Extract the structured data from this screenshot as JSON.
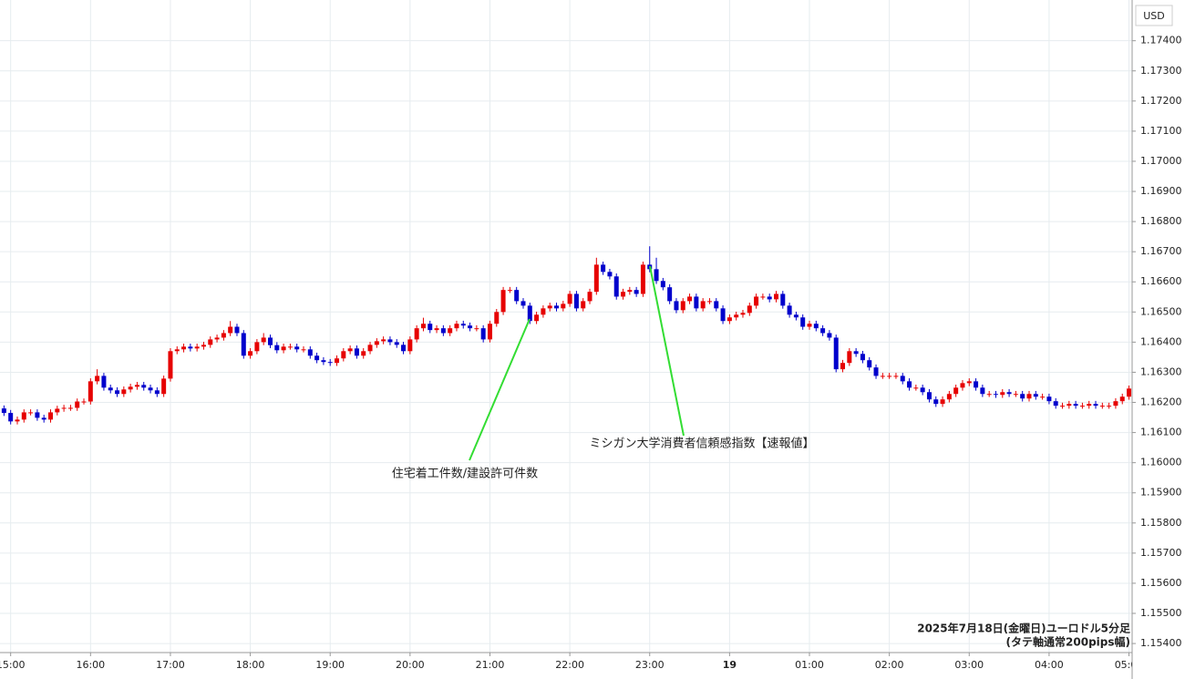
{
  "chart_data": {
    "type": "candlestick",
    "currency": "USD",
    "note": [
      "2025年7月18日(金曜日)ユーロドル5分足",
      "(タテ軸通常200pips幅)"
    ],
    "annotations": [
      "住宅着工件数/建設許可件数",
      "ミシガン大学消費者信頼感指数【速報値】"
    ],
    "up_color": "#e60000",
    "down_color": "#0000cc",
    "grid": true,
    "xlim": [
      -8,
      841
    ],
    "xticks": [
      {
        "value": 0,
        "label": "15:00"
      },
      {
        "value": 60,
        "label": "16:00"
      },
      {
        "value": 120,
        "label": "17:00"
      },
      {
        "value": 180,
        "label": "18:00"
      },
      {
        "value": 240,
        "label": "19:00"
      },
      {
        "value": 300,
        "label": "20:00"
      },
      {
        "value": 360,
        "label": "21:00"
      },
      {
        "value": 420,
        "label": "22:00"
      },
      {
        "value": 480,
        "label": "23:00"
      },
      {
        "value": 540,
        "label": "19"
      },
      {
        "value": 600,
        "label": "01:00"
      },
      {
        "value": 660,
        "label": "02:00"
      },
      {
        "value": 720,
        "label": "03:00"
      },
      {
        "value": 780,
        "label": "04:00"
      },
      {
        "value": 840,
        "label": "05:00"
      }
    ],
    "ylim": [
      1.1537,
      1.1752
    ],
    "yticks": [
      {
        "value": 1.154,
        "label": "1.15400"
      },
      {
        "value": 1.155,
        "label": "1.15500"
      },
      {
        "value": 1.156,
        "label": "1.15600"
      },
      {
        "value": 1.157,
        "label": "1.15700"
      },
      {
        "value": 1.158,
        "label": "1.15800"
      },
      {
        "value": 1.159,
        "label": "1.15900"
      },
      {
        "value": 1.16,
        "label": "1.16000"
      },
      {
        "value": 1.161,
        "label": "1.16100"
      },
      {
        "value": 1.162,
        "label": "1.16200"
      },
      {
        "value": 1.163,
        "label": "1.16300"
      },
      {
        "value": 1.164,
        "label": "1.16400"
      },
      {
        "value": 1.165,
        "label": "1.16500"
      },
      {
        "value": 1.166,
        "label": "1.16600"
      },
      {
        "value": 1.167,
        "label": "1.16700"
      },
      {
        "value": 1.168,
        "label": "1.16800"
      },
      {
        "value": 1.169,
        "label": "1.16900"
      },
      {
        "value": 1.17,
        "label": "1.17000"
      },
      {
        "value": 1.171,
        "label": "1.17100"
      },
      {
        "value": 1.172,
        "label": "1.17200"
      },
      {
        "value": 1.173,
        "label": "1.17300"
      },
      {
        "value": 1.174,
        "label": "1.17400"
      }
    ],
    "x": [
      -5,
      0,
      5,
      10,
      15,
      20,
      25,
      30,
      35,
      40,
      45,
      50,
      55,
      60,
      65,
      70,
      75,
      80,
      85,
      90,
      95,
      100,
      105,
      110,
      115,
      120,
      125,
      130,
      135,
      140,
      145,
      150,
      155,
      160,
      165,
      170,
      175,
      180,
      185,
      190,
      195,
      200,
      205,
      210,
      215,
      220,
      225,
      230,
      235,
      240,
      245,
      250,
      255,
      260,
      265,
      270,
      275,
      280,
      285,
      290,
      295,
      300,
      305,
      310,
      315,
      320,
      325,
      330,
      335,
      340,
      345,
      350,
      355,
      360,
      365,
      370,
      375,
      380,
      385,
      390,
      395,
      400,
      405,
      410,
      415,
      420,
      425,
      430,
      435,
      440,
      445,
      450,
      455,
      460,
      465,
      470,
      475,
      480,
      485,
      490,
      495,
      500,
      505,
      510,
      515,
      520,
      525,
      530,
      535,
      540,
      545,
      550,
      555,
      560,
      565,
      570,
      575,
      580,
      585,
      590,
      595,
      600,
      605,
      610,
      615,
      620,
      625,
      630,
      635,
      640,
      645,
      650,
      655,
      660,
      665,
      670,
      675,
      680,
      685,
      690,
      695,
      700,
      705,
      710,
      715,
      720,
      725,
      730,
      735,
      740,
      745,
      750,
      755,
      760,
      765,
      770,
      775,
      780,
      785,
      790,
      795,
      800,
      805,
      810,
      815,
      820,
      825,
      830,
      835,
      840
    ],
    "open": [
      1.1618,
      1.16165,
      1.16137,
      1.16143,
      1.16167,
      1.16167,
      1.16149,
      1.16143,
      1.16167,
      1.16179,
      1.16182,
      1.16182,
      1.16203,
      1.16203,
      1.1627,
      1.16288,
      1.16249,
      1.1624,
      1.16228,
      1.16243,
      1.16252,
      1.16258,
      1.16249,
      1.1624,
      1.16228,
      1.16279,
      1.1637,
      1.16376,
      1.16385,
      1.16379,
      1.16385,
      1.16391,
      1.16409,
      1.16415,
      1.1643,
      1.16451,
      1.1643,
      1.16355,
      1.1637,
      1.164,
      1.16415,
      1.1639,
      1.16373,
      1.16385,
      1.16385,
      1.16376,
      1.16376,
      1.16355,
      1.1634,
      1.16334,
      1.16331,
      1.16346,
      1.1637,
      1.16379,
      1.16355,
      1.1637,
      1.16391,
      1.16403,
      1.16409,
      1.164,
      1.16391,
      1.1637,
      1.16409,
      1.16446,
      1.16461,
      1.1644,
      1.16446,
      1.1643,
      1.16446,
      1.16461,
      1.16455,
      1.16446,
      1.16446,
      1.16409,
      1.16461,
      1.165,
      1.16573,
      1.16573,
      1.16536,
      1.16521,
      1.1647,
      1.16491,
      1.16512,
      1.16521,
      1.16512,
      1.16527,
      1.1656,
      1.16512,
      1.16536,
      1.16567,
      1.16657,
      1.16633,
      1.16618,
      1.16551,
      1.16567,
      1.16573,
      1.1656,
      1.16657,
      1.16642,
      1.16603,
      1.16582,
      1.16536,
      1.16506,
      1.16536,
      1.16551,
      1.16512,
      1.16536,
      1.16536,
      1.16512,
      1.1647,
      1.16482,
      1.16491,
      1.16497,
      1.16521,
      1.16551,
      1.16551,
      1.16542,
      1.1656,
      1.16521,
      1.16491,
      1.16482,
      1.16451,
      1.16461,
      1.16446,
      1.1643,
      1.16415,
      1.1631,
      1.16331,
      1.1637,
      1.16361,
      1.1634,
      1.16316,
      1.16288,
      1.16288,
      1.16288,
      1.16288,
      1.1627,
      1.16249,
      1.16249,
      1.16234,
      1.1621,
      1.16195,
      1.1621,
      1.16228,
      1.16249,
      1.16264,
      1.1627,
      1.16249,
      1.16228,
      1.16228,
      1.16225,
      1.16234,
      1.16228,
      1.16228,
      1.16213,
      1.16228,
      1.16219,
      1.16219,
      1.16204,
      1.16189,
      1.16189,
      1.16195,
      1.16189,
      1.16189,
      1.16195,
      1.16189,
      1.16189,
      1.16189,
      1.16204,
      1.16219
    ],
    "high": [
      1.1619,
      1.16175,
      1.16153,
      1.16177,
      1.16177,
      1.16177,
      1.16159,
      1.16177,
      1.16189,
      1.16192,
      1.16192,
      1.16213,
      1.16213,
      1.1628,
      1.1631,
      1.16298,
      1.16259,
      1.1625,
      1.16253,
      1.16262,
      1.16268,
      1.16268,
      1.16259,
      1.1625,
      1.16289,
      1.1638,
      1.16386,
      1.16395,
      1.16395,
      1.16395,
      1.16401,
      1.16419,
      1.16425,
      1.1644,
      1.1647,
      1.16461,
      1.1644,
      1.1638,
      1.1641,
      1.1643,
      1.16425,
      1.164,
      1.16395,
      1.16395,
      1.16395,
      1.16386,
      1.16386,
      1.16365,
      1.1635,
      1.16344,
      1.16356,
      1.1638,
      1.16389,
      1.16389,
      1.1638,
      1.16401,
      1.16413,
      1.16419,
      1.16419,
      1.1641,
      1.16401,
      1.16419,
      1.16456,
      1.16481,
      1.16471,
      1.16456,
      1.16456,
      1.16456,
      1.16471,
      1.16471,
      1.16465,
      1.16456,
      1.16456,
      1.16471,
      1.1651,
      1.16583,
      1.16583,
      1.16583,
      1.16546,
      1.16531,
      1.16501,
      1.16522,
      1.16531,
      1.16531,
      1.16537,
      1.1657,
      1.1657,
      1.16546,
      1.16577,
      1.1668,
      1.16667,
      1.16643,
      1.16628,
      1.16577,
      1.16583,
      1.16583,
      1.16667,
      1.16718,
      1.1668,
      1.16613,
      1.16592,
      1.16546,
      1.16546,
      1.16561,
      1.16561,
      1.16546,
      1.16546,
      1.16546,
      1.16522,
      1.16492,
      1.16501,
      1.16507,
      1.16531,
      1.16561,
      1.16561,
      1.16561,
      1.1657,
      1.1657,
      1.16531,
      1.16501,
      1.16492,
      1.16471,
      1.16471,
      1.16456,
      1.1644,
      1.16425,
      1.16341,
      1.1638,
      1.1638,
      1.16371,
      1.1635,
      1.16326,
      1.16298,
      1.16298,
      1.16298,
      1.16298,
      1.1628,
      1.16259,
      1.16259,
      1.16244,
      1.1622,
      1.1622,
      1.16238,
      1.16259,
      1.16274,
      1.1628,
      1.1628,
      1.16259,
      1.16238,
      1.16238,
      1.16244,
      1.16244,
      1.16238,
      1.16238,
      1.16238,
      1.16238,
      1.16229,
      1.16229,
      1.16214,
      1.16199,
      1.16205,
      1.16205,
      1.16199,
      1.16205,
      1.16205,
      1.16199,
      1.16199,
      1.16214,
      1.16229,
      1.16256
    ],
    "low": [
      1.16155,
      1.16127,
      1.16127,
      1.16133,
      1.16157,
      1.16139,
      1.16133,
      1.16133,
      1.16157,
      1.16169,
      1.16172,
      1.16172,
      1.16193,
      1.16193,
      1.1626,
      1.16239,
      1.1623,
      1.16218,
      1.16218,
      1.16233,
      1.16242,
      1.16239,
      1.1623,
      1.16218,
      1.16218,
      1.16269,
      1.1636,
      1.16366,
      1.16369,
      1.16369,
      1.16375,
      1.16381,
      1.16399,
      1.16405,
      1.1642,
      1.1642,
      1.16345,
      1.16345,
      1.1636,
      1.1639,
      1.1638,
      1.16363,
      1.16363,
      1.16375,
      1.16366,
      1.16366,
      1.16345,
      1.1633,
      1.16324,
      1.16321,
      1.16321,
      1.16336,
      1.1636,
      1.16345,
      1.16345,
      1.1636,
      1.16381,
      1.16393,
      1.1639,
      1.16381,
      1.1636,
      1.1636,
      1.16399,
      1.16436,
      1.1643,
      1.1643,
      1.1642,
      1.1642,
      1.16436,
      1.16445,
      1.16436,
      1.16436,
      1.16399,
      1.16399,
      1.16451,
      1.1649,
      1.16563,
      1.16526,
      1.16511,
      1.1646,
      1.1646,
      1.16481,
      1.16502,
      1.16502,
      1.16502,
      1.16517,
      1.16502,
      1.16502,
      1.16526,
      1.16557,
      1.16623,
      1.16608,
      1.16541,
      1.16541,
      1.16557,
      1.1655,
      1.1655,
      1.16632,
      1.16593,
      1.16572,
      1.16526,
      1.16496,
      1.16496,
      1.16526,
      1.16502,
      1.16502,
      1.16526,
      1.16502,
      1.1646,
      1.1646,
      1.16472,
      1.16481,
      1.16487,
      1.16511,
      1.16541,
      1.16532,
      1.16532,
      1.16511,
      1.16481,
      1.16472,
      1.16441,
      1.16441,
      1.16436,
      1.1642,
      1.16405,
      1.163,
      1.163,
      1.16321,
      1.16351,
      1.1633,
      1.16306,
      1.16278,
      1.16278,
      1.16278,
      1.16278,
      1.1626,
      1.16239,
      1.16239,
      1.16224,
      1.162,
      1.16185,
      1.16185,
      1.162,
      1.16218,
      1.16239,
      1.16254,
      1.16239,
      1.16218,
      1.16218,
      1.16215,
      1.16215,
      1.16218,
      1.16218,
      1.16203,
      1.16203,
      1.16209,
      1.16209,
      1.16194,
      1.16179,
      1.16179,
      1.16179,
      1.16179,
      1.16179,
      1.16179,
      1.16179,
      1.16179,
      1.16179,
      1.16179,
      1.16194,
      1.16209
    ],
    "close": [
      1.16165,
      1.16137,
      1.16143,
      1.16167,
      1.16167,
      1.16149,
      1.16143,
      1.16167,
      1.16179,
      1.16182,
      1.16182,
      1.16203,
      1.16203,
      1.1627,
      1.16288,
      1.16249,
      1.1624,
      1.16228,
      1.16243,
      1.16252,
      1.16258,
      1.16249,
      1.1624,
      1.16228,
      1.16279,
      1.1637,
      1.16376,
      1.16385,
      1.16379,
      1.16385,
      1.16391,
      1.16409,
      1.16415,
      1.1643,
      1.16451,
      1.1643,
      1.16355,
      1.1637,
      1.164,
      1.16415,
      1.1639,
      1.16373,
      1.16385,
      1.16385,
      1.16376,
      1.16376,
      1.16355,
      1.1634,
      1.16334,
      1.16331,
      1.16346,
      1.1637,
      1.16379,
      1.16355,
      1.1637,
      1.16391,
      1.16403,
      1.16409,
      1.164,
      1.16391,
      1.1637,
      1.16409,
      1.16446,
      1.16461,
      1.1644,
      1.16446,
      1.1643,
      1.16446,
      1.16461,
      1.16455,
      1.16446,
      1.16446,
      1.16409,
      1.16461,
      1.165,
      1.16573,
      1.16573,
      1.16536,
      1.16521,
      1.1647,
      1.16491,
      1.16512,
      1.16521,
      1.16512,
      1.16527,
      1.1656,
      1.16512,
      1.16536,
      1.16567,
      1.16657,
      1.16633,
      1.16618,
      1.16551,
      1.16567,
      1.16573,
      1.1656,
      1.16657,
      1.16642,
      1.16603,
      1.16582,
      1.16536,
      1.16506,
      1.16536,
      1.16551,
      1.16512,
      1.16536,
      1.16536,
      1.16512,
      1.1647,
      1.16482,
      1.16491,
      1.16497,
      1.16521,
      1.16551,
      1.16551,
      1.16542,
      1.1656,
      1.16521,
      1.16491,
      1.16482,
      1.16451,
      1.16461,
      1.16446,
      1.1643,
      1.16415,
      1.1631,
      1.16331,
      1.1637,
      1.16361,
      1.1634,
      1.16316,
      1.16288,
      1.16288,
      1.16288,
      1.16288,
      1.1627,
      1.16249,
      1.16249,
      1.16234,
      1.1621,
      1.16195,
      1.1621,
      1.16228,
      1.16249,
      1.16264,
      1.1627,
      1.16249,
      1.16228,
      1.16228,
      1.16225,
      1.16234,
      1.16228,
      1.16228,
      1.16213,
      1.16228,
      1.16219,
      1.16219,
      1.16204,
      1.16189,
      1.16189,
      1.16195,
      1.16189,
      1.16189,
      1.16195,
      1.16189,
      1.16189,
      1.16189,
      1.16204,
      1.16219,
      1.16246
    ]
  }
}
